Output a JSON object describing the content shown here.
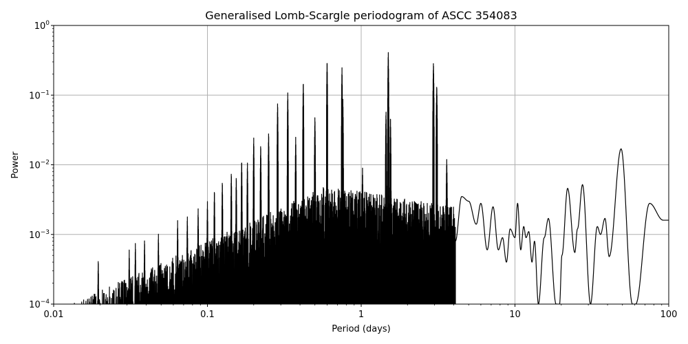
{
  "chart_data": {
    "type": "line",
    "title": "Generalised Lomb-Scargle periodogram of ASCC 354083",
    "xlabel": "Period (days)",
    "ylabel": "Power",
    "xscale": "log",
    "yscale": "log",
    "xlim": [
      0.01,
      100
    ],
    "ylim": [
      0.0001,
      1
    ],
    "grid": true,
    "legend": null,
    "x_ticks": [
      {
        "value": 0.01,
        "label": "0.01"
      },
      {
        "value": 0.1,
        "label": "0.1"
      },
      {
        "value": 1,
        "label": "1"
      },
      {
        "value": 10,
        "label": "10"
      },
      {
        "value": 100,
        "label": "100"
      }
    ],
    "y_ticks": [
      {
        "value": 0.0001,
        "base": "10",
        "exp": "−4"
      },
      {
        "value": 0.001,
        "base": "10",
        "exp": "−3"
      },
      {
        "value": 0.01,
        "base": "10",
        "exp": "−2"
      },
      {
        "value": 0.1,
        "base": "10",
        "exp": "−1"
      },
      {
        "value": 1,
        "base": "10",
        "exp": "0"
      }
    ],
    "line_color": "#000000",
    "grid_color": "#b0b0b0",
    "peaks": [
      {
        "period": 0.0195,
        "power": 0.00045
      },
      {
        "period": 0.031,
        "power": 0.0006
      },
      {
        "period": 0.034,
        "power": 0.00077
      },
      {
        "period": 0.039,
        "power": 0.00087
      },
      {
        "period": 0.048,
        "power": 0.00105
      },
      {
        "period": 0.064,
        "power": 0.0016
      },
      {
        "period": 0.074,
        "power": 0.0019
      },
      {
        "period": 0.087,
        "power": 0.0024
      },
      {
        "period": 0.1,
        "power": 0.003
      },
      {
        "period": 0.111,
        "power": 0.0045
      },
      {
        "period": 0.125,
        "power": 0.006
      },
      {
        "period": 0.143,
        "power": 0.008
      },
      {
        "period": 0.154,
        "power": 0.007
      },
      {
        "period": 0.167,
        "power": 0.012
      },
      {
        "period": 0.182,
        "power": 0.011
      },
      {
        "period": 0.2,
        "power": 0.025
      },
      {
        "period": 0.222,
        "power": 0.02
      },
      {
        "period": 0.25,
        "power": 0.03
      },
      {
        "period": 0.286,
        "power": 0.08
      },
      {
        "period": 0.333,
        "power": 0.11
      },
      {
        "period": 0.375,
        "power": 0.025
      },
      {
        "period": 0.42,
        "power": 0.16
      },
      {
        "period": 0.5,
        "power": 0.05
      },
      {
        "period": 0.6,
        "power": 0.32
      },
      {
        "period": 0.75,
        "power": 0.25
      },
      {
        "period": 0.76,
        "power": 0.09
      },
      {
        "period": 1.02,
        "power": 0.009
      },
      {
        "period": 1.45,
        "power": 0.06
      },
      {
        "period": 1.5,
        "power": 0.42
      },
      {
        "period": 1.55,
        "power": 0.05
      },
      {
        "period": 2.95,
        "power": 0.3
      },
      {
        "period": 3.1,
        "power": 0.14
      },
      {
        "period": 3.6,
        "power": 0.012
      },
      {
        "period": 22,
        "power": 0.0046
      },
      {
        "period": 27.5,
        "power": 0.0052
      },
      {
        "period": 49,
        "power": 0.017
      },
      {
        "period": 75,
        "power": 0.0028
      }
    ],
    "smooth_tail": [
      [
        4.1,
        0.0008
      ],
      [
        4.5,
        0.0035
      ],
      [
        5.0,
        0.003
      ],
      [
        5.6,
        0.0014
      ],
      [
        6.0,
        0.0028
      ],
      [
        6.6,
        0.0006
      ],
      [
        7.2,
        0.0025
      ],
      [
        7.8,
        0.0006
      ],
      [
        8.3,
        0.0009
      ],
      [
        8.8,
        0.0004
      ],
      [
        9.3,
        0.0012
      ],
      [
        10.0,
        0.0009
      ],
      [
        10.4,
        0.0028
      ],
      [
        10.9,
        0.0006
      ],
      [
        11.4,
        0.0013
      ],
      [
        11.8,
        0.0009
      ],
      [
        12.3,
        0.0011
      ],
      [
        12.9,
        0.0004
      ],
      [
        13.4,
        0.0008
      ],
      [
        14.2,
        0.0001
      ],
      [
        15.5,
        0.0009
      ],
      [
        16.5,
        0.0017
      ],
      [
        18.5,
        0.0001
      ],
      [
        19.5,
        0.0001
      ],
      [
        20.2,
        0.0005
      ],
      [
        22,
        0.0046
      ],
      [
        24.5,
        0.00055
      ],
      [
        25.5,
        0.0012
      ],
      [
        27.5,
        0.0052
      ],
      [
        31,
        0.0001
      ],
      [
        34.3,
        0.0013
      ],
      [
        36,
        0.001
      ],
      [
        38.5,
        0.0017
      ],
      [
        41,
        0.00048
      ],
      [
        49,
        0.017
      ],
      [
        58,
        0.0001
      ],
      [
        61,
        0.0001
      ],
      [
        75,
        0.0028
      ],
      [
        92,
        0.0016
      ],
      [
        100,
        0.0016
      ]
    ]
  }
}
